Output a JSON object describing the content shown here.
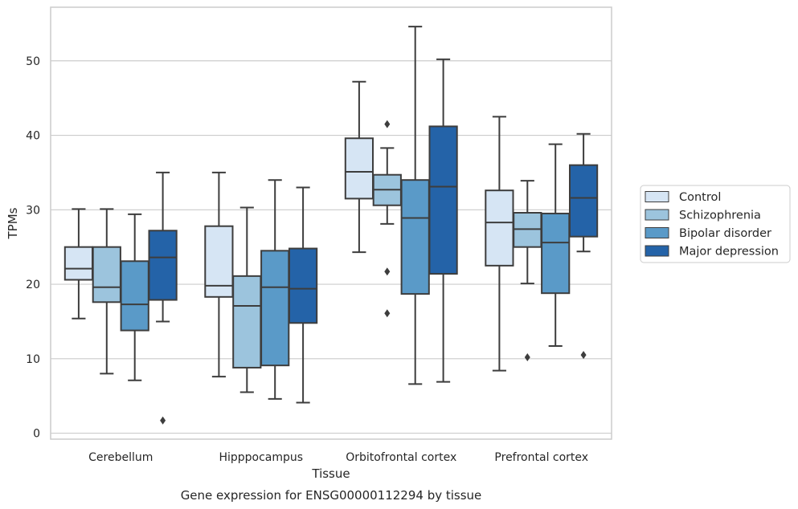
{
  "caption": "Gene expression for ENSG00000112294 by tissue",
  "chart_data": {
    "type": "box",
    "title": "",
    "xlabel": "Tissue",
    "ylabel": "TPMs",
    "ylim": [
      -0.8,
      57.2
    ],
    "yticks": [
      0,
      10,
      20,
      30,
      40,
      50
    ],
    "grid": "horizontal",
    "legend_position": "right",
    "categories": [
      "Cerebellum",
      "Hipppocampus",
      "Orbitofrontal cortex",
      "Prefrontal cortex"
    ],
    "series": [
      {
        "name": "Control",
        "color": "#d6e5f4",
        "boxes": [
          {
            "whislo": 15.4,
            "q1": 20.6,
            "med": 22.1,
            "q3": 25.0,
            "whishi": 30.1,
            "fliers": []
          },
          {
            "whislo": 7.6,
            "q1": 18.3,
            "med": 19.8,
            "q3": 27.8,
            "whishi": 35.0,
            "fliers": []
          },
          {
            "whislo": 24.3,
            "q1": 31.5,
            "med": 35.1,
            "q3": 39.6,
            "whishi": 47.2,
            "fliers": []
          },
          {
            "whislo": 8.4,
            "q1": 22.5,
            "med": 28.3,
            "q3": 32.6,
            "whishi": 42.5,
            "fliers": []
          }
        ]
      },
      {
        "name": "Schizophrenia",
        "color": "#9cc4dd",
        "boxes": [
          {
            "whislo": 8.0,
            "q1": 17.6,
            "med": 19.6,
            "q3": 25.0,
            "whishi": 30.1,
            "fliers": []
          },
          {
            "whislo": 5.5,
            "q1": 8.8,
            "med": 17.1,
            "q3": 21.1,
            "whishi": 30.3,
            "fliers": []
          },
          {
            "whislo": 28.1,
            "q1": 30.6,
            "med": 32.7,
            "q3": 34.7,
            "whishi": 38.3,
            "fliers": [
              41.5,
              21.7,
              16.1
            ]
          },
          {
            "whislo": 20.1,
            "q1": 25.0,
            "med": 27.4,
            "q3": 29.6,
            "whishi": 33.9,
            "fliers": [
              10.2
            ]
          }
        ]
      },
      {
        "name": "Bipolar disorder",
        "color": "#5a9ac8",
        "boxes": [
          {
            "whislo": 7.1,
            "q1": 13.8,
            "med": 17.3,
            "q3": 23.1,
            "whishi": 29.4,
            "fliers": []
          },
          {
            "whislo": 4.6,
            "q1": 9.1,
            "med": 19.6,
            "q3": 24.5,
            "whishi": 34.0,
            "fliers": []
          },
          {
            "whislo": 6.6,
            "q1": 18.7,
            "med": 28.9,
            "q3": 34.0,
            "whishi": 54.6,
            "fliers": []
          },
          {
            "whislo": 11.7,
            "q1": 18.8,
            "med": 25.6,
            "q3": 29.5,
            "whishi": 38.8,
            "fliers": []
          }
        ]
      },
      {
        "name": "Major depression",
        "color": "#2463a8",
        "boxes": [
          {
            "whislo": 15.0,
            "q1": 17.9,
            "med": 23.6,
            "q3": 27.2,
            "whishi": 35.0,
            "fliers": [
              1.7
            ]
          },
          {
            "whislo": 4.1,
            "q1": 14.8,
            "med": 19.4,
            "q3": 24.8,
            "whishi": 33.0,
            "fliers": []
          },
          {
            "whislo": 6.9,
            "q1": 21.4,
            "med": 33.1,
            "q3": 41.2,
            "whishi": 50.2,
            "fliers": []
          },
          {
            "whislo": 24.4,
            "q1": 26.4,
            "med": 31.6,
            "q3": 36.0,
            "whishi": 40.2,
            "fliers": [
              10.5
            ]
          }
        ]
      }
    ]
  }
}
